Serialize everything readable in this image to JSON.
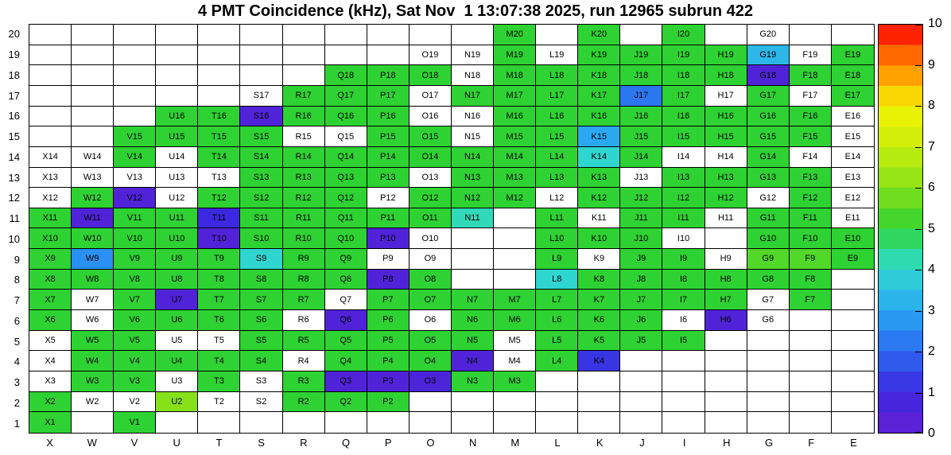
{
  "chart_data": {
    "type": "heatmap",
    "title": "4 PMT Coincidence (kHz), Sat Nov  1 13:07:38 2025, run 12965 subrun 422",
    "units": "kHz",
    "columns": [
      "X",
      "W",
      "V",
      "U",
      "T",
      "S",
      "R",
      "Q",
      "P",
      "O",
      "N",
      "M",
      "L",
      "K",
      "J",
      "I",
      "H",
      "G",
      "F",
      "E"
    ],
    "row_labels_top_to_bottom": [
      "20",
      "19",
      "18",
      "17",
      "16",
      "15",
      "14",
      "13",
      "12",
      "11",
      "10",
      "9",
      "8",
      "7",
      "6",
      "5",
      "4",
      "3",
      "2",
      "1"
    ],
    "zlim": [
      0,
      10
    ],
    "grid_on": true,
    "legend_position": "right-colorbar",
    "colorbar": {
      "ticks": [
        "0",
        "1",
        "2",
        "3",
        "4",
        "5",
        "6",
        "7",
        "8",
        "9",
        "10"
      ],
      "values": [
        0,
        1,
        2,
        3,
        4,
        5,
        6,
        7,
        8,
        9,
        10
      ]
    },
    "palette": [
      [
        0,
        "#641ed2"
      ],
      [
        1,
        "#3c28e0"
      ],
      [
        2,
        "#2b6af0"
      ],
      [
        3,
        "#2aa9f2"
      ],
      [
        4,
        "#2fd6d0"
      ],
      [
        4.5,
        "#31dd92"
      ],
      [
        5,
        "#2ed232"
      ],
      [
        6,
        "#86e119"
      ],
      [
        7,
        "#c6ee0c"
      ],
      [
        8,
        "#f4f203"
      ],
      [
        8.6,
        "#ffb300"
      ],
      [
        9.2,
        "#ff7000"
      ],
      [
        10,
        "#ff0000"
      ]
    ],
    "cells": [
      [
        "M20",
        5
      ],
      [
        "K20",
        5
      ],
      [
        "I20",
        5
      ],
      [
        "G20",
        null
      ],
      [
        "O19",
        null
      ],
      [
        "N19",
        null
      ],
      [
        "M19",
        5
      ],
      [
        "L19",
        null
      ],
      [
        "K19",
        5
      ],
      [
        "J19",
        5
      ],
      [
        "I19",
        5
      ],
      [
        "H19",
        5
      ],
      [
        "G19",
        3.3
      ],
      [
        "F19",
        null
      ],
      [
        "E19",
        5
      ],
      [
        "Q18",
        5
      ],
      [
        "P18",
        5
      ],
      [
        "O18",
        5
      ],
      [
        "N18",
        null
      ],
      [
        "M18",
        5
      ],
      [
        "L18",
        5
      ],
      [
        "K18",
        5
      ],
      [
        "J18",
        5
      ],
      [
        "I18",
        5
      ],
      [
        "H18",
        5
      ],
      [
        "G18",
        0.5
      ],
      [
        "F18",
        5
      ],
      [
        "E18",
        5
      ],
      [
        "S17",
        null
      ],
      [
        "R17",
        5
      ],
      [
        "Q17",
        5
      ],
      [
        "P17",
        5
      ],
      [
        "O17",
        null
      ],
      [
        "N17",
        5
      ],
      [
        "M17",
        5
      ],
      [
        "L17",
        5
      ],
      [
        "K17",
        5
      ],
      [
        "J17",
        2.2
      ],
      [
        "I17",
        5
      ],
      [
        "H17",
        null
      ],
      [
        "G17",
        5
      ],
      [
        "F17",
        null
      ],
      [
        "E17",
        5
      ],
      [
        "U16",
        5
      ],
      [
        "T16",
        5
      ],
      [
        "S16",
        0.5
      ],
      [
        "R16",
        5
      ],
      [
        "Q16",
        5
      ],
      [
        "P16",
        5
      ],
      [
        "O16",
        null
      ],
      [
        "N16",
        null
      ],
      [
        "M16",
        5
      ],
      [
        "L16",
        5
      ],
      [
        "K16",
        5
      ],
      [
        "J16",
        5
      ],
      [
        "I16",
        5
      ],
      [
        "H16",
        5
      ],
      [
        "G16",
        5
      ],
      [
        "F16",
        5
      ],
      [
        "E16",
        null
      ],
      [
        "V15",
        5
      ],
      [
        "U15",
        5
      ],
      [
        "T15",
        5
      ],
      [
        "S15",
        5
      ],
      [
        "R15",
        null
      ],
      [
        "Q15",
        null
      ],
      [
        "P15",
        5
      ],
      [
        "O15",
        5
      ],
      [
        "N15",
        null
      ],
      [
        "M15",
        5
      ],
      [
        "L15",
        5
      ],
      [
        "K15",
        3
      ],
      [
        "J15",
        5
      ],
      [
        "I15",
        5
      ],
      [
        "H15",
        5
      ],
      [
        "G15",
        5
      ],
      [
        "F15",
        5
      ],
      [
        "E15",
        null
      ],
      [
        "X14",
        null
      ],
      [
        "W14",
        null
      ],
      [
        "V14",
        5
      ],
      [
        "U14",
        null
      ],
      [
        "T14",
        5
      ],
      [
        "S14",
        5
      ],
      [
        "R14",
        5
      ],
      [
        "Q14",
        5
      ],
      [
        "P14",
        5
      ],
      [
        "O14",
        5
      ],
      [
        "N14",
        5
      ],
      [
        "M14",
        5
      ],
      [
        "L14",
        5
      ],
      [
        "K14",
        4
      ],
      [
        "J14",
        5
      ],
      [
        "I14",
        null
      ],
      [
        "H14",
        null
      ],
      [
        "G14",
        5
      ],
      [
        "F14",
        null
      ],
      [
        "E14",
        null
      ],
      [
        "X13",
        null
      ],
      [
        "W13",
        null
      ],
      [
        "V13",
        null
      ],
      [
        "U13",
        null
      ],
      [
        "T13",
        null
      ],
      [
        "S13",
        5
      ],
      [
        "R13",
        5
      ],
      [
        "Q13",
        5
      ],
      [
        "P13",
        5
      ],
      [
        "O13",
        null
      ],
      [
        "N13",
        5
      ],
      [
        "M13",
        5
      ],
      [
        "L13",
        5
      ],
      [
        "K13",
        5
      ],
      [
        "J13",
        null
      ],
      [
        "I13",
        5
      ],
      [
        "H13",
        5
      ],
      [
        "G13",
        5
      ],
      [
        "F13",
        5
      ],
      [
        "E13",
        null
      ],
      [
        "X12",
        null
      ],
      [
        "W12",
        5
      ],
      [
        "V12",
        0.5
      ],
      [
        "U12",
        null
      ],
      [
        "T12",
        5
      ],
      [
        "S12",
        5
      ],
      [
        "R12",
        5
      ],
      [
        "Q12",
        5
      ],
      [
        "P12",
        null
      ],
      [
        "O12",
        5
      ],
      [
        "N12",
        5
      ],
      [
        "M12",
        5
      ],
      [
        "L12",
        null
      ],
      [
        "K12",
        5
      ],
      [
        "J12",
        5
      ],
      [
        "I12",
        5
      ],
      [
        "H12",
        5
      ],
      [
        "G12",
        null
      ],
      [
        "F12",
        5
      ],
      [
        "E12",
        null
      ],
      [
        "X11",
        5
      ],
      [
        "W11",
        0.5
      ],
      [
        "V11",
        5
      ],
      [
        "U11",
        5
      ],
      [
        "T11",
        1
      ],
      [
        "S11",
        5
      ],
      [
        "R11",
        5
      ],
      [
        "Q11",
        5
      ],
      [
        "P11",
        5
      ],
      [
        "O11",
        5
      ],
      [
        "N11",
        4.2
      ],
      [
        "L11",
        5
      ],
      [
        "K11",
        null
      ],
      [
        "J11",
        5
      ],
      [
        "I11",
        5
      ],
      [
        "H11",
        null
      ],
      [
        "G11",
        5
      ],
      [
        "F11",
        5
      ],
      [
        "E11",
        null
      ],
      [
        "X10",
        5
      ],
      [
        "W10",
        5
      ],
      [
        "V10",
        5
      ],
      [
        "U10",
        5
      ],
      [
        "T10",
        0.5
      ],
      [
        "S10",
        5
      ],
      [
        "R10",
        5
      ],
      [
        "Q10",
        5
      ],
      [
        "P10",
        0.5
      ],
      [
        "O10",
        null
      ],
      [
        "L10",
        5
      ],
      [
        "K10",
        5
      ],
      [
        "J10",
        5
      ],
      [
        "I10",
        null
      ],
      [
        "G10",
        5
      ],
      [
        "F10",
        5
      ],
      [
        "E10",
        5
      ],
      [
        "X9",
        5
      ],
      [
        "W9",
        2.6
      ],
      [
        "V9",
        5
      ],
      [
        "U9",
        5
      ],
      [
        "T9",
        5
      ],
      [
        "S9",
        4
      ],
      [
        "R9",
        5
      ],
      [
        "Q9",
        5
      ],
      [
        "P9",
        null
      ],
      [
        "O9",
        null
      ],
      [
        "L9",
        5
      ],
      [
        "K9",
        null
      ],
      [
        "J9",
        5
      ],
      [
        "I9",
        5
      ],
      [
        "H9",
        null
      ],
      [
        "G9",
        5.4
      ],
      [
        "F9",
        5.4
      ],
      [
        "E9",
        5
      ],
      [
        "X8",
        5
      ],
      [
        "W8",
        5
      ],
      [
        "V8",
        5
      ],
      [
        "U8",
        5
      ],
      [
        "T8",
        5
      ],
      [
        "S8",
        5
      ],
      [
        "R8",
        5
      ],
      [
        "Q8",
        5
      ],
      [
        "P8",
        0.5
      ],
      [
        "O8",
        5
      ],
      [
        "L8",
        4
      ],
      [
        "K8",
        5
      ],
      [
        "J8",
        5
      ],
      [
        "I8",
        5
      ],
      [
        "H8",
        5
      ],
      [
        "G8",
        5
      ],
      [
        "F8",
        5
      ],
      [
        "X7",
        5
      ],
      [
        "W7",
        null
      ],
      [
        "V7",
        5
      ],
      [
        "U7",
        0.5
      ],
      [
        "T7",
        5
      ],
      [
        "S7",
        5
      ],
      [
        "R7",
        5
      ],
      [
        "Q7",
        null
      ],
      [
        "P7",
        5
      ],
      [
        "O7",
        5
      ],
      [
        "N7",
        5
      ],
      [
        "M7",
        5
      ],
      [
        "L7",
        5
      ],
      [
        "K7",
        5
      ],
      [
        "J7",
        5
      ],
      [
        "I7",
        5
      ],
      [
        "H7",
        5
      ],
      [
        "G7",
        null
      ],
      [
        "F7",
        5
      ],
      [
        "X6",
        5
      ],
      [
        "W6",
        null
      ],
      [
        "V6",
        5
      ],
      [
        "U6",
        5
      ],
      [
        "T6",
        5
      ],
      [
        "S6",
        5
      ],
      [
        "R6",
        null
      ],
      [
        "Q6",
        0.5
      ],
      [
        "P6",
        5
      ],
      [
        "O6",
        null
      ],
      [
        "N6",
        5
      ],
      [
        "M6",
        5
      ],
      [
        "L6",
        5
      ],
      [
        "K6",
        5
      ],
      [
        "J6",
        5
      ],
      [
        "I6",
        null
      ],
      [
        "H6",
        0.5
      ],
      [
        "G6",
        null
      ],
      [
        "X5",
        null
      ],
      [
        "W5",
        5
      ],
      [
        "V5",
        5
      ],
      [
        "U5",
        null
      ],
      [
        "T5",
        null
      ],
      [
        "S5",
        5
      ],
      [
        "R5",
        5
      ],
      [
        "Q5",
        5
      ],
      [
        "P5",
        5
      ],
      [
        "O5",
        5
      ],
      [
        "N5",
        5
      ],
      [
        "M5",
        null
      ],
      [
        "L5",
        5
      ],
      [
        "K5",
        5
      ],
      [
        "J5",
        5
      ],
      [
        "I5",
        5
      ],
      [
        "X4",
        null
      ],
      [
        "W4",
        5
      ],
      [
        "V4",
        5
      ],
      [
        "U4",
        5
      ],
      [
        "T4",
        5
      ],
      [
        "S4",
        5
      ],
      [
        "R4",
        null
      ],
      [
        "Q4",
        5
      ],
      [
        "P4",
        5
      ],
      [
        "O4",
        5
      ],
      [
        "N4",
        0.5
      ],
      [
        "M4",
        null
      ],
      [
        "L4",
        5
      ],
      [
        "K4",
        1.2
      ],
      [
        "X3",
        null
      ],
      [
        "W3",
        5
      ],
      [
        "V3",
        5
      ],
      [
        "U3",
        null
      ],
      [
        "T3",
        5
      ],
      [
        "S3",
        null
      ],
      [
        "R3",
        5
      ],
      [
        "Q3",
        0.5
      ],
      [
        "P3",
        0.5
      ],
      [
        "O3",
        0.6
      ],
      [
        "N3",
        5
      ],
      [
        "M3",
        5
      ],
      [
        "X2",
        5
      ],
      [
        "W2",
        null
      ],
      [
        "V2",
        null
      ],
      [
        "U2",
        6
      ],
      [
        "T2",
        null
      ],
      [
        "S2",
        null
      ],
      [
        "R2",
        5
      ],
      [
        "Q2",
        5
      ],
      [
        "P2",
        5
      ],
      [
        "X1",
        5
      ],
      [
        "V1",
        5
      ]
    ]
  }
}
